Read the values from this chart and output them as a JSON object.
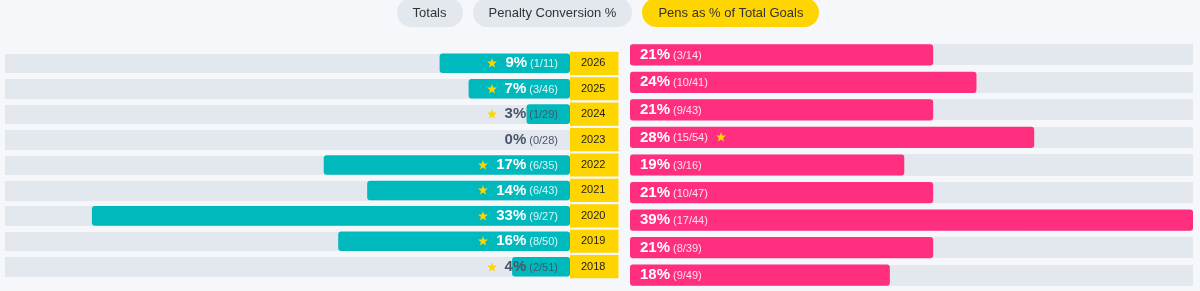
{
  "chart_data": [
    {
      "type": "bar",
      "orientation": "horizontal",
      "categories": [
        "2026",
        "2025",
        "2024",
        "2023",
        "2022",
        "2021",
        "2020",
        "2019",
        "2018"
      ],
      "color": "#00b9bd",
      "values": [
        9,
        7,
        3,
        0,
        17,
        14,
        33,
        16,
        4
      ],
      "value_labels": [
        "9% (1/11)",
        "7% (3/46)",
        "3% (1/29)",
        "0% (0/28)",
        "17% (6/35)",
        "14% (6/43)",
        "33% (9/27)",
        "16% (8/50)",
        "4% (2/51)"
      ],
      "tick_labels": "y",
      "grid": false,
      "annotations": [
        "Totals",
        "Penalty Conversion %",
        "Pens as % of Total Goals"
      ]
    },
    {
      "type": "bar",
      "orientation": "horizontal",
      "categories": [
        "2026",
        "2025",
        "2024",
        "2023",
        "2022",
        "2021",
        "2020",
        "2019",
        "2018"
      ],
      "color": "#ff2e7e",
      "values": [
        21,
        24,
        21,
        28,
        19,
        21,
        39,
        21,
        18
      ],
      "value_labels": [
        "21% (3/14)",
        "24% (10/41)",
        "21% (9/43)",
        "28% (15/54)",
        "19% (3/16)",
        "21% (10/47)",
        "39% (17/44)",
        "21% (8/39)",
        "18% (9/49)"
      ],
      "tick_labels": false,
      "grid": false
    }
  ]
}
